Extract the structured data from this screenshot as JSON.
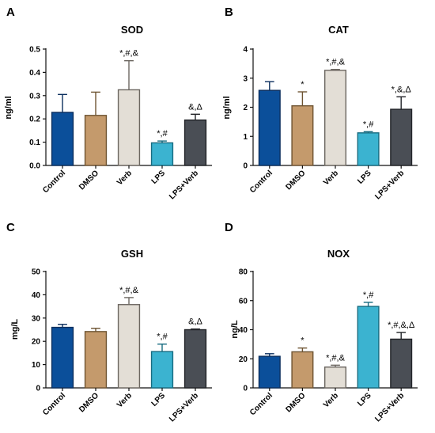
{
  "chart_data": [
    {
      "panel": "A",
      "type": "bar",
      "title": "SOD",
      "ylabel": "ng/ml",
      "ylim": [
        0,
        0.5
      ],
      "yticks": [
        0,
        0.1,
        0.2,
        0.3,
        0.4,
        0.5
      ],
      "ytick_labels": [
        "0.0",
        "0.1",
        "0.2",
        "0.3",
        "0.4",
        "0.5"
      ],
      "categories": [
        "Control",
        "DMSO",
        "Verb",
        "LPS",
        "LPS+Verb"
      ],
      "values": [
        0.228,
        0.215,
        0.325,
        0.097,
        0.195
      ],
      "errors": [
        0.077,
        0.1,
        0.125,
        0.008,
        0.025
      ],
      "annotations": [
        "",
        "",
        "*,#,&",
        "*,#",
        "&,Δ"
      ]
    },
    {
      "panel": "B",
      "type": "bar",
      "title": "CAT",
      "ylabel": "ng/ml",
      "ylim": [
        0,
        4
      ],
      "yticks": [
        0,
        1,
        2,
        3,
        4
      ],
      "ytick_labels": [
        "0",
        "1",
        "2",
        "3",
        "4"
      ],
      "categories": [
        "Control",
        "DMSO",
        "Verb",
        "LPS",
        "LPS+Verb"
      ],
      "values": [
        2.58,
        2.05,
        3.27,
        1.12,
        1.93
      ],
      "errors": [
        0.3,
        0.48,
        0.03,
        0.04,
        0.43
      ],
      "annotations": [
        "",
        "*",
        "*,#,&",
        "*,#",
        "*,&,Δ"
      ]
    },
    {
      "panel": "C",
      "type": "bar",
      "title": "GSH",
      "ylabel": "mg/L",
      "ylim": [
        0,
        50
      ],
      "yticks": [
        0,
        10,
        20,
        30,
        40,
        50
      ],
      "ytick_labels": [
        "0",
        "10",
        "20",
        "30",
        "40",
        "50"
      ],
      "categories": [
        "Control",
        "DMSO",
        "Verb",
        "LPS",
        "LPS+Verb"
      ],
      "values": [
        26.0,
        24.2,
        35.8,
        15.6,
        25.0
      ],
      "errors": [
        1.3,
        1.4,
        3.0,
        3.2,
        0.3
      ],
      "annotations": [
        "",
        "",
        "*,#,&",
        "*,#",
        "&,Δ"
      ]
    },
    {
      "panel": "D",
      "type": "bar",
      "title": "NOX",
      "ylabel": "ng/L",
      "ylim": [
        0,
        80
      ],
      "yticks": [
        0,
        20,
        40,
        60,
        80
      ],
      "ytick_labels": [
        "0",
        "20",
        "40",
        "60",
        "80"
      ],
      "categories": [
        "Control",
        "DMSO",
        "Verb",
        "LPS",
        "LPS+Verb"
      ],
      "values": [
        21.7,
        24.8,
        14.3,
        56.0,
        33.5
      ],
      "errors": [
        1.8,
        2.6,
        1.3,
        2.8,
        4.6
      ],
      "annotations": [
        "",
        "*",
        "*,#,&",
        "*,#",
        "*,#,&,Δ"
      ]
    }
  ],
  "colors": {
    "fills": [
      "#0b4f9a",
      "#c49a6c",
      "#e3ded6",
      "#3bb3d0",
      "#4a4e55"
    ],
    "strokes": [
      "#0c2f5e",
      "#6e5432",
      "#6b6660",
      "#176b80",
      "#222428"
    ],
    "axis": "#111111"
  }
}
